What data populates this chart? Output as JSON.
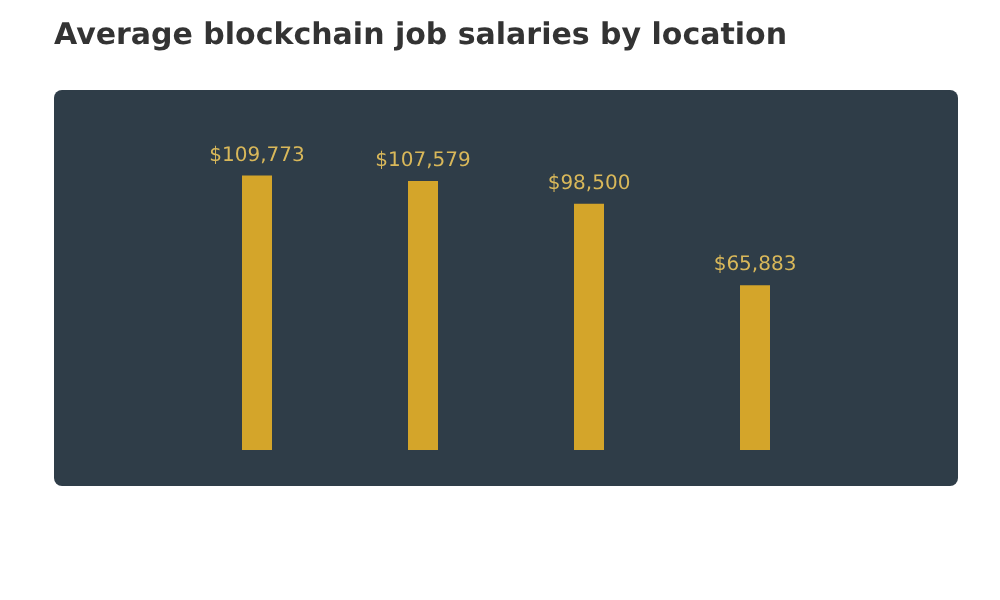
{
  "chart_data": {
    "type": "bar",
    "title": "Average blockchain job salaries by location",
    "categories": [
      null,
      null,
      null,
      null
    ],
    "values": [
      109773,
      107579,
      98500,
      65883
    ],
    "value_labels": [
      "$109,773",
      "$107,579",
      "$98,500",
      "$65,883"
    ],
    "color": "#d4a52a"
  }
}
